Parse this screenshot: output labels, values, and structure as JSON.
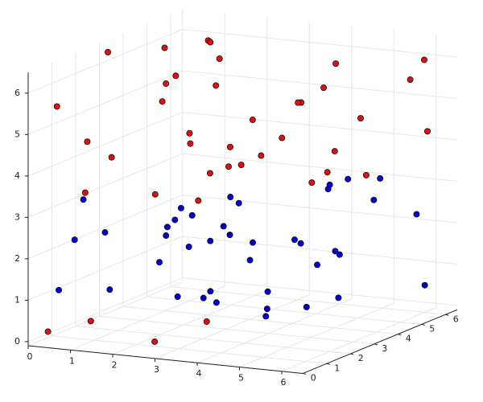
{
  "chart_data": {
    "type": "scatter3d",
    "xlim": [
      0,
      6.5
    ],
    "ylim": [
      0,
      6.5
    ],
    "zlim": [
      -0.1,
      6.5
    ],
    "xticks": [
      0,
      1,
      2,
      3,
      4,
      5,
      6
    ],
    "yticks": [
      0,
      1,
      2,
      3,
      4,
      5,
      6
    ],
    "zticks": [
      0,
      1,
      2,
      3,
      4,
      5,
      6
    ],
    "grid": true,
    "series": [
      {
        "color": "#0000cc",
        "x": [
          0.5,
          1.2,
          2.3,
          3.1,
          4.0,
          5.2,
          5.9,
          0.8,
          1.7,
          2.6,
          3.5,
          4.4,
          5.5,
          6.1,
          0.3,
          1.4,
          2.9,
          3.8,
          4.7,
          5.8,
          1.0,
          2.1,
          3.3,
          4.2,
          5.0,
          6.3,
          0.6,
          1.9,
          2.7,
          3.9,
          4.9,
          5.6,
          0.2,
          1.5,
          2.4,
          3.6,
          4.5,
          5.3,
          6.0,
          2.0
        ],
        "y": [
          0.4,
          1.1,
          2.2,
          3.0,
          4.1,
          5.3,
          6.2,
          0.9,
          2.5,
          3.6,
          1.7,
          4.8,
          0.3,
          5.5,
          2.9,
          6.0,
          0.7,
          3.3,
          5.1,
          1.4,
          4.4,
          2.7,
          6.3,
          0.2,
          3.8,
          1.9,
          5.7,
          4.0,
          1.0,
          2.4,
          6.1,
          3.1,
          1.6,
          5.0,
          4.6,
          0.5,
          2.0,
          3.5,
          0.8,
          5.9
        ],
        "z": [
          1.2,
          2.5,
          0.8,
          3.1,
          1.9,
          2.7,
          0.5,
          3.3,
          1.5,
          2.2,
          0.9,
          3.0,
          1.7,
          2.4,
          0.6,
          1.3,
          2.9,
          0.4,
          3.2,
          1.1,
          2.0,
          2.8,
          0.7,
          1.6,
          3.4,
          2.3,
          1.0,
          0.3,
          2.6,
          1.8,
          3.0,
          0.9,
          2.1,
          1.4,
          2.5,
          3.3,
          0.6,
          1.9,
          2.8,
          1.2
        ]
      },
      {
        "color": "#dd1111",
        "x": [
          0.4,
          1.3,
          2.2,
          3.0,
          4.1,
          5.0,
          6.0,
          0.9,
          1.8,
          2.7,
          3.6,
          4.5,
          5.4,
          6.3,
          0.2,
          1.1,
          2.5,
          3.4,
          4.3,
          5.7,
          0.7,
          1.6,
          2.9,
          3.8,
          4.8,
          5.9,
          1.0,
          2.0,
          3.2,
          4.6,
          5.5,
          6.2,
          0.5,
          1.5,
          2.4,
          3.5,
          0.3,
          1.2,
          2.6,
          4.0
        ],
        "y": [
          0.5,
          1.2,
          2.3,
          3.1,
          4.2,
          5.1,
          6.0,
          0.8,
          2.6,
          3.7,
          1.5,
          4.9,
          0.2,
          5.6,
          3.0,
          6.1,
          0.9,
          3.4,
          5.3,
          1.8,
          4.5,
          2.8,
          6.2,
          0.4,
          3.9,
          2.1,
          5.8,
          4.1,
          1.1,
          2.5,
          6.3,
          3.2,
          1.6,
          5.0,
          4.7,
          0.6,
          0.3,
          0.5,
          0.7,
          0.4
        ],
        "z": [
          5.6,
          4.3,
          6.1,
          3.8,
          5.2,
          4.7,
          6.0,
          3.5,
          5.8,
          4.1,
          6.2,
          3.9,
          5.0,
          4.4,
          6.3,
          5.5,
          3.6,
          4.9,
          5.9,
          4.0,
          6.1,
          5.3,
          4.6,
          3.7,
          5.7,
          4.2,
          6.0,
          3.3,
          5.1,
          4.8,
          5.4,
          3.9,
          4.5,
          6.2,
          3.4,
          5.0,
          0.2,
          0.5,
          0.1,
          0.8
        ]
      }
    ]
  }
}
